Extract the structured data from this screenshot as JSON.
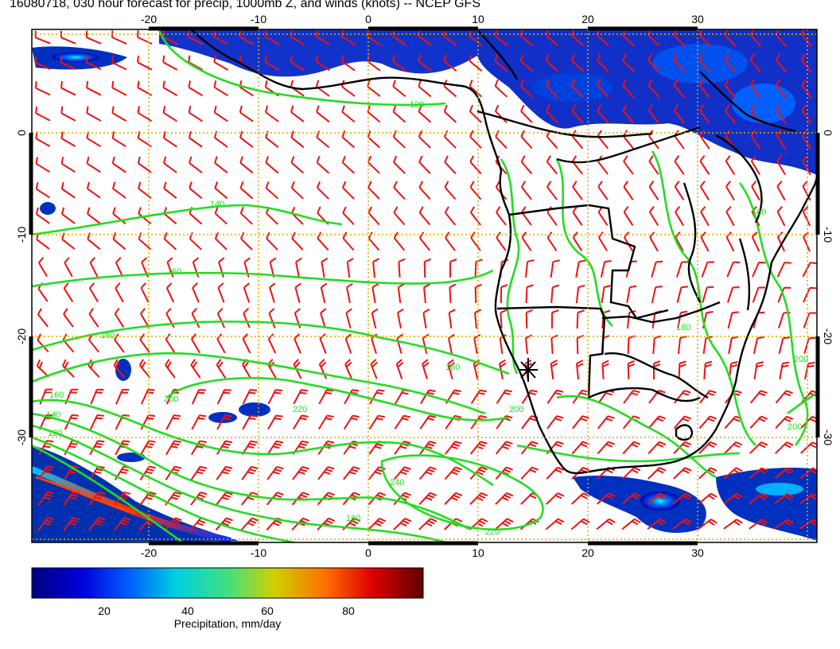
{
  "title": "16080718, 030 hour forecast for precip, 1000mb Z, and winds (knots) -- NCEP GFS",
  "map": {
    "lon_range": [
      -30,
      40
    ],
    "lat_range": [
      -40,
      10
    ],
    "lon_ticks": [
      "-20",
      "-10",
      "0",
      "10",
      "20",
      "30"
    ],
    "lat_ticks": [
      "0",
      "-10",
      "-20",
      "-30"
    ],
    "grid": "dotted orange every 10 degrees",
    "marker": "asterisk",
    "marker_position": {
      "lon": 14.5,
      "lat": -23
    }
  },
  "contour_labels": [
    "120",
    "140",
    "160",
    "180",
    "200",
    "220",
    "240",
    "180",
    "160",
    "140",
    "120",
    "200",
    "220",
    "180",
    "200",
    "200",
    "160",
    "180"
  ],
  "colorbar": {
    "ticks": [
      "20",
      "40",
      "60",
      "80"
    ],
    "range": [
      0,
      100
    ],
    "label": "Precipitation, mm/day"
  },
  "colors": {
    "contour": "#22dd22",
    "barb": "#ee1111",
    "grid": "#ddaa00",
    "coast": "#000000"
  }
}
